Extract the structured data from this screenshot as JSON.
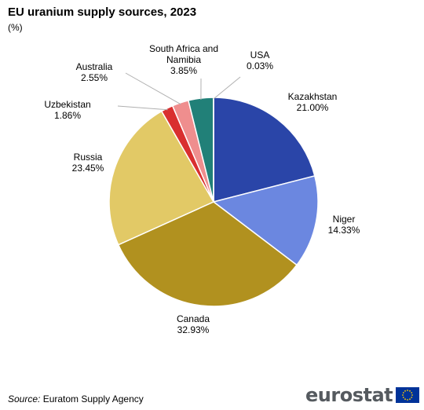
{
  "title": "EU uranium supply sources, 2023",
  "subtitle": "(%)",
  "source": {
    "label": "Source:",
    "text": " Euratom Supply Agency"
  },
  "logo": {
    "text": "eurostat"
  },
  "colors": {
    "flag_blue": "#003399",
    "flag_star": "#ffcc00"
  },
  "chart_data": {
    "type": "pie",
    "unit": "%",
    "slices": [
      {
        "name": "Kazakhstan",
        "value_label": "21.00%",
        "value": 21.0,
        "color": "#2a45a8"
      },
      {
        "name": "Niger",
        "value_label": "14.33%",
        "value": 14.33,
        "color": "#6b87e0"
      },
      {
        "name": "Canada",
        "value_label": "32.93%",
        "value": 32.93,
        "color": "#b1911f"
      },
      {
        "name": "Russia",
        "value_label": "23.45%",
        "value": 23.45,
        "color": "#e2c966"
      },
      {
        "name": "Uzbekistan",
        "value_label": "1.86%",
        "value": 1.86,
        "color": "#d92f2f"
      },
      {
        "name": "Australia",
        "value_label": "2.55%",
        "value": 2.55,
        "color": "#ef8e8e"
      },
      {
        "name": "South Africa and Namibia",
        "value_label": "3.85%",
        "value": 3.85,
        "color": "#218078"
      },
      {
        "name": "USA",
        "value_label": "0.03%",
        "value": 0.03,
        "color": "#2cc3bb"
      }
    ]
  }
}
